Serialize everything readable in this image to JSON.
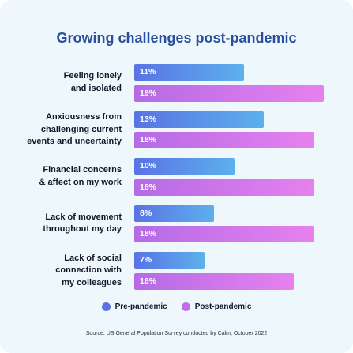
{
  "chart_data": {
    "type": "bar",
    "orientation": "horizontal",
    "title": "Growing challenges post-pandemic",
    "categories": [
      "Feeling lonely\nand isolated",
      "Anxiousness from\nchallenging current\nevents and uncertainty",
      "Financial concerns\n& affect on my work",
      "Lack of movement\nthroughout my day",
      "Lack of social\nconnection with\nmy colleagues"
    ],
    "series": [
      {
        "name": "Pre-pandemic",
        "values": [
          11,
          13,
          10,
          8,
          7
        ],
        "color": "#5a73e4"
      },
      {
        "name": "Post-pandemic",
        "values": [
          19,
          18,
          18,
          18,
          16
        ],
        "color": "#c06fe8"
      }
    ],
    "value_suffix": "%",
    "legend_position": "bottom",
    "grid": false,
    "source": "Source: US General Population Survey conducted by Calm, October 2022"
  }
}
